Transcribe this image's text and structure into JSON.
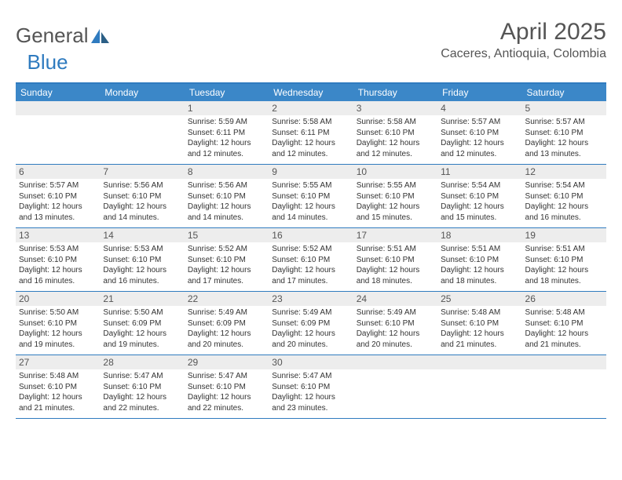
{
  "brand": {
    "part1": "General",
    "part2": "Blue"
  },
  "title": "April 2025",
  "location": "Caceres, Antioquia, Colombia",
  "colors": {
    "header_bg": "#3b87c8",
    "border": "#2f7bbf",
    "daynum_bg": "#ededed",
    "text": "#333333",
    "title": "#555555"
  },
  "layout": {
    "columns": 7,
    "rows": 5,
    "cell_min_height": 76
  },
  "dow": [
    "Sunday",
    "Monday",
    "Tuesday",
    "Wednesday",
    "Thursday",
    "Friday",
    "Saturday"
  ],
  "weeks": [
    [
      {
        "n": "",
        "sr": "",
        "ss": "",
        "dl": ""
      },
      {
        "n": "",
        "sr": "",
        "ss": "",
        "dl": ""
      },
      {
        "n": "1",
        "sr": "Sunrise: 5:59 AM",
        "ss": "Sunset: 6:11 PM",
        "dl": "Daylight: 12 hours and 12 minutes."
      },
      {
        "n": "2",
        "sr": "Sunrise: 5:58 AM",
        "ss": "Sunset: 6:11 PM",
        "dl": "Daylight: 12 hours and 12 minutes."
      },
      {
        "n": "3",
        "sr": "Sunrise: 5:58 AM",
        "ss": "Sunset: 6:10 PM",
        "dl": "Daylight: 12 hours and 12 minutes."
      },
      {
        "n": "4",
        "sr": "Sunrise: 5:57 AM",
        "ss": "Sunset: 6:10 PM",
        "dl": "Daylight: 12 hours and 12 minutes."
      },
      {
        "n": "5",
        "sr": "Sunrise: 5:57 AM",
        "ss": "Sunset: 6:10 PM",
        "dl": "Daylight: 12 hours and 13 minutes."
      }
    ],
    [
      {
        "n": "6",
        "sr": "Sunrise: 5:57 AM",
        "ss": "Sunset: 6:10 PM",
        "dl": "Daylight: 12 hours and 13 minutes."
      },
      {
        "n": "7",
        "sr": "Sunrise: 5:56 AM",
        "ss": "Sunset: 6:10 PM",
        "dl": "Daylight: 12 hours and 14 minutes."
      },
      {
        "n": "8",
        "sr": "Sunrise: 5:56 AM",
        "ss": "Sunset: 6:10 PM",
        "dl": "Daylight: 12 hours and 14 minutes."
      },
      {
        "n": "9",
        "sr": "Sunrise: 5:55 AM",
        "ss": "Sunset: 6:10 PM",
        "dl": "Daylight: 12 hours and 14 minutes."
      },
      {
        "n": "10",
        "sr": "Sunrise: 5:55 AM",
        "ss": "Sunset: 6:10 PM",
        "dl": "Daylight: 12 hours and 15 minutes."
      },
      {
        "n": "11",
        "sr": "Sunrise: 5:54 AM",
        "ss": "Sunset: 6:10 PM",
        "dl": "Daylight: 12 hours and 15 minutes."
      },
      {
        "n": "12",
        "sr": "Sunrise: 5:54 AM",
        "ss": "Sunset: 6:10 PM",
        "dl": "Daylight: 12 hours and 16 minutes."
      }
    ],
    [
      {
        "n": "13",
        "sr": "Sunrise: 5:53 AM",
        "ss": "Sunset: 6:10 PM",
        "dl": "Daylight: 12 hours and 16 minutes."
      },
      {
        "n": "14",
        "sr": "Sunrise: 5:53 AM",
        "ss": "Sunset: 6:10 PM",
        "dl": "Daylight: 12 hours and 16 minutes."
      },
      {
        "n": "15",
        "sr": "Sunrise: 5:52 AM",
        "ss": "Sunset: 6:10 PM",
        "dl": "Daylight: 12 hours and 17 minutes."
      },
      {
        "n": "16",
        "sr": "Sunrise: 5:52 AM",
        "ss": "Sunset: 6:10 PM",
        "dl": "Daylight: 12 hours and 17 minutes."
      },
      {
        "n": "17",
        "sr": "Sunrise: 5:51 AM",
        "ss": "Sunset: 6:10 PM",
        "dl": "Daylight: 12 hours and 18 minutes."
      },
      {
        "n": "18",
        "sr": "Sunrise: 5:51 AM",
        "ss": "Sunset: 6:10 PM",
        "dl": "Daylight: 12 hours and 18 minutes."
      },
      {
        "n": "19",
        "sr": "Sunrise: 5:51 AM",
        "ss": "Sunset: 6:10 PM",
        "dl": "Daylight: 12 hours and 18 minutes."
      }
    ],
    [
      {
        "n": "20",
        "sr": "Sunrise: 5:50 AM",
        "ss": "Sunset: 6:10 PM",
        "dl": "Daylight: 12 hours and 19 minutes."
      },
      {
        "n": "21",
        "sr": "Sunrise: 5:50 AM",
        "ss": "Sunset: 6:09 PM",
        "dl": "Daylight: 12 hours and 19 minutes."
      },
      {
        "n": "22",
        "sr": "Sunrise: 5:49 AM",
        "ss": "Sunset: 6:09 PM",
        "dl": "Daylight: 12 hours and 20 minutes."
      },
      {
        "n": "23",
        "sr": "Sunrise: 5:49 AM",
        "ss": "Sunset: 6:09 PM",
        "dl": "Daylight: 12 hours and 20 minutes."
      },
      {
        "n": "24",
        "sr": "Sunrise: 5:49 AM",
        "ss": "Sunset: 6:10 PM",
        "dl": "Daylight: 12 hours and 20 minutes."
      },
      {
        "n": "25",
        "sr": "Sunrise: 5:48 AM",
        "ss": "Sunset: 6:10 PM",
        "dl": "Daylight: 12 hours and 21 minutes."
      },
      {
        "n": "26",
        "sr": "Sunrise: 5:48 AM",
        "ss": "Sunset: 6:10 PM",
        "dl": "Daylight: 12 hours and 21 minutes."
      }
    ],
    [
      {
        "n": "27",
        "sr": "Sunrise: 5:48 AM",
        "ss": "Sunset: 6:10 PM",
        "dl": "Daylight: 12 hours and 21 minutes."
      },
      {
        "n": "28",
        "sr": "Sunrise: 5:47 AM",
        "ss": "Sunset: 6:10 PM",
        "dl": "Daylight: 12 hours and 22 minutes."
      },
      {
        "n": "29",
        "sr": "Sunrise: 5:47 AM",
        "ss": "Sunset: 6:10 PM",
        "dl": "Daylight: 12 hours and 22 minutes."
      },
      {
        "n": "30",
        "sr": "Sunrise: 5:47 AM",
        "ss": "Sunset: 6:10 PM",
        "dl": "Daylight: 12 hours and 23 minutes."
      },
      {
        "n": "",
        "sr": "",
        "ss": "",
        "dl": ""
      },
      {
        "n": "",
        "sr": "",
        "ss": "",
        "dl": ""
      },
      {
        "n": "",
        "sr": "",
        "ss": "",
        "dl": ""
      }
    ]
  ]
}
